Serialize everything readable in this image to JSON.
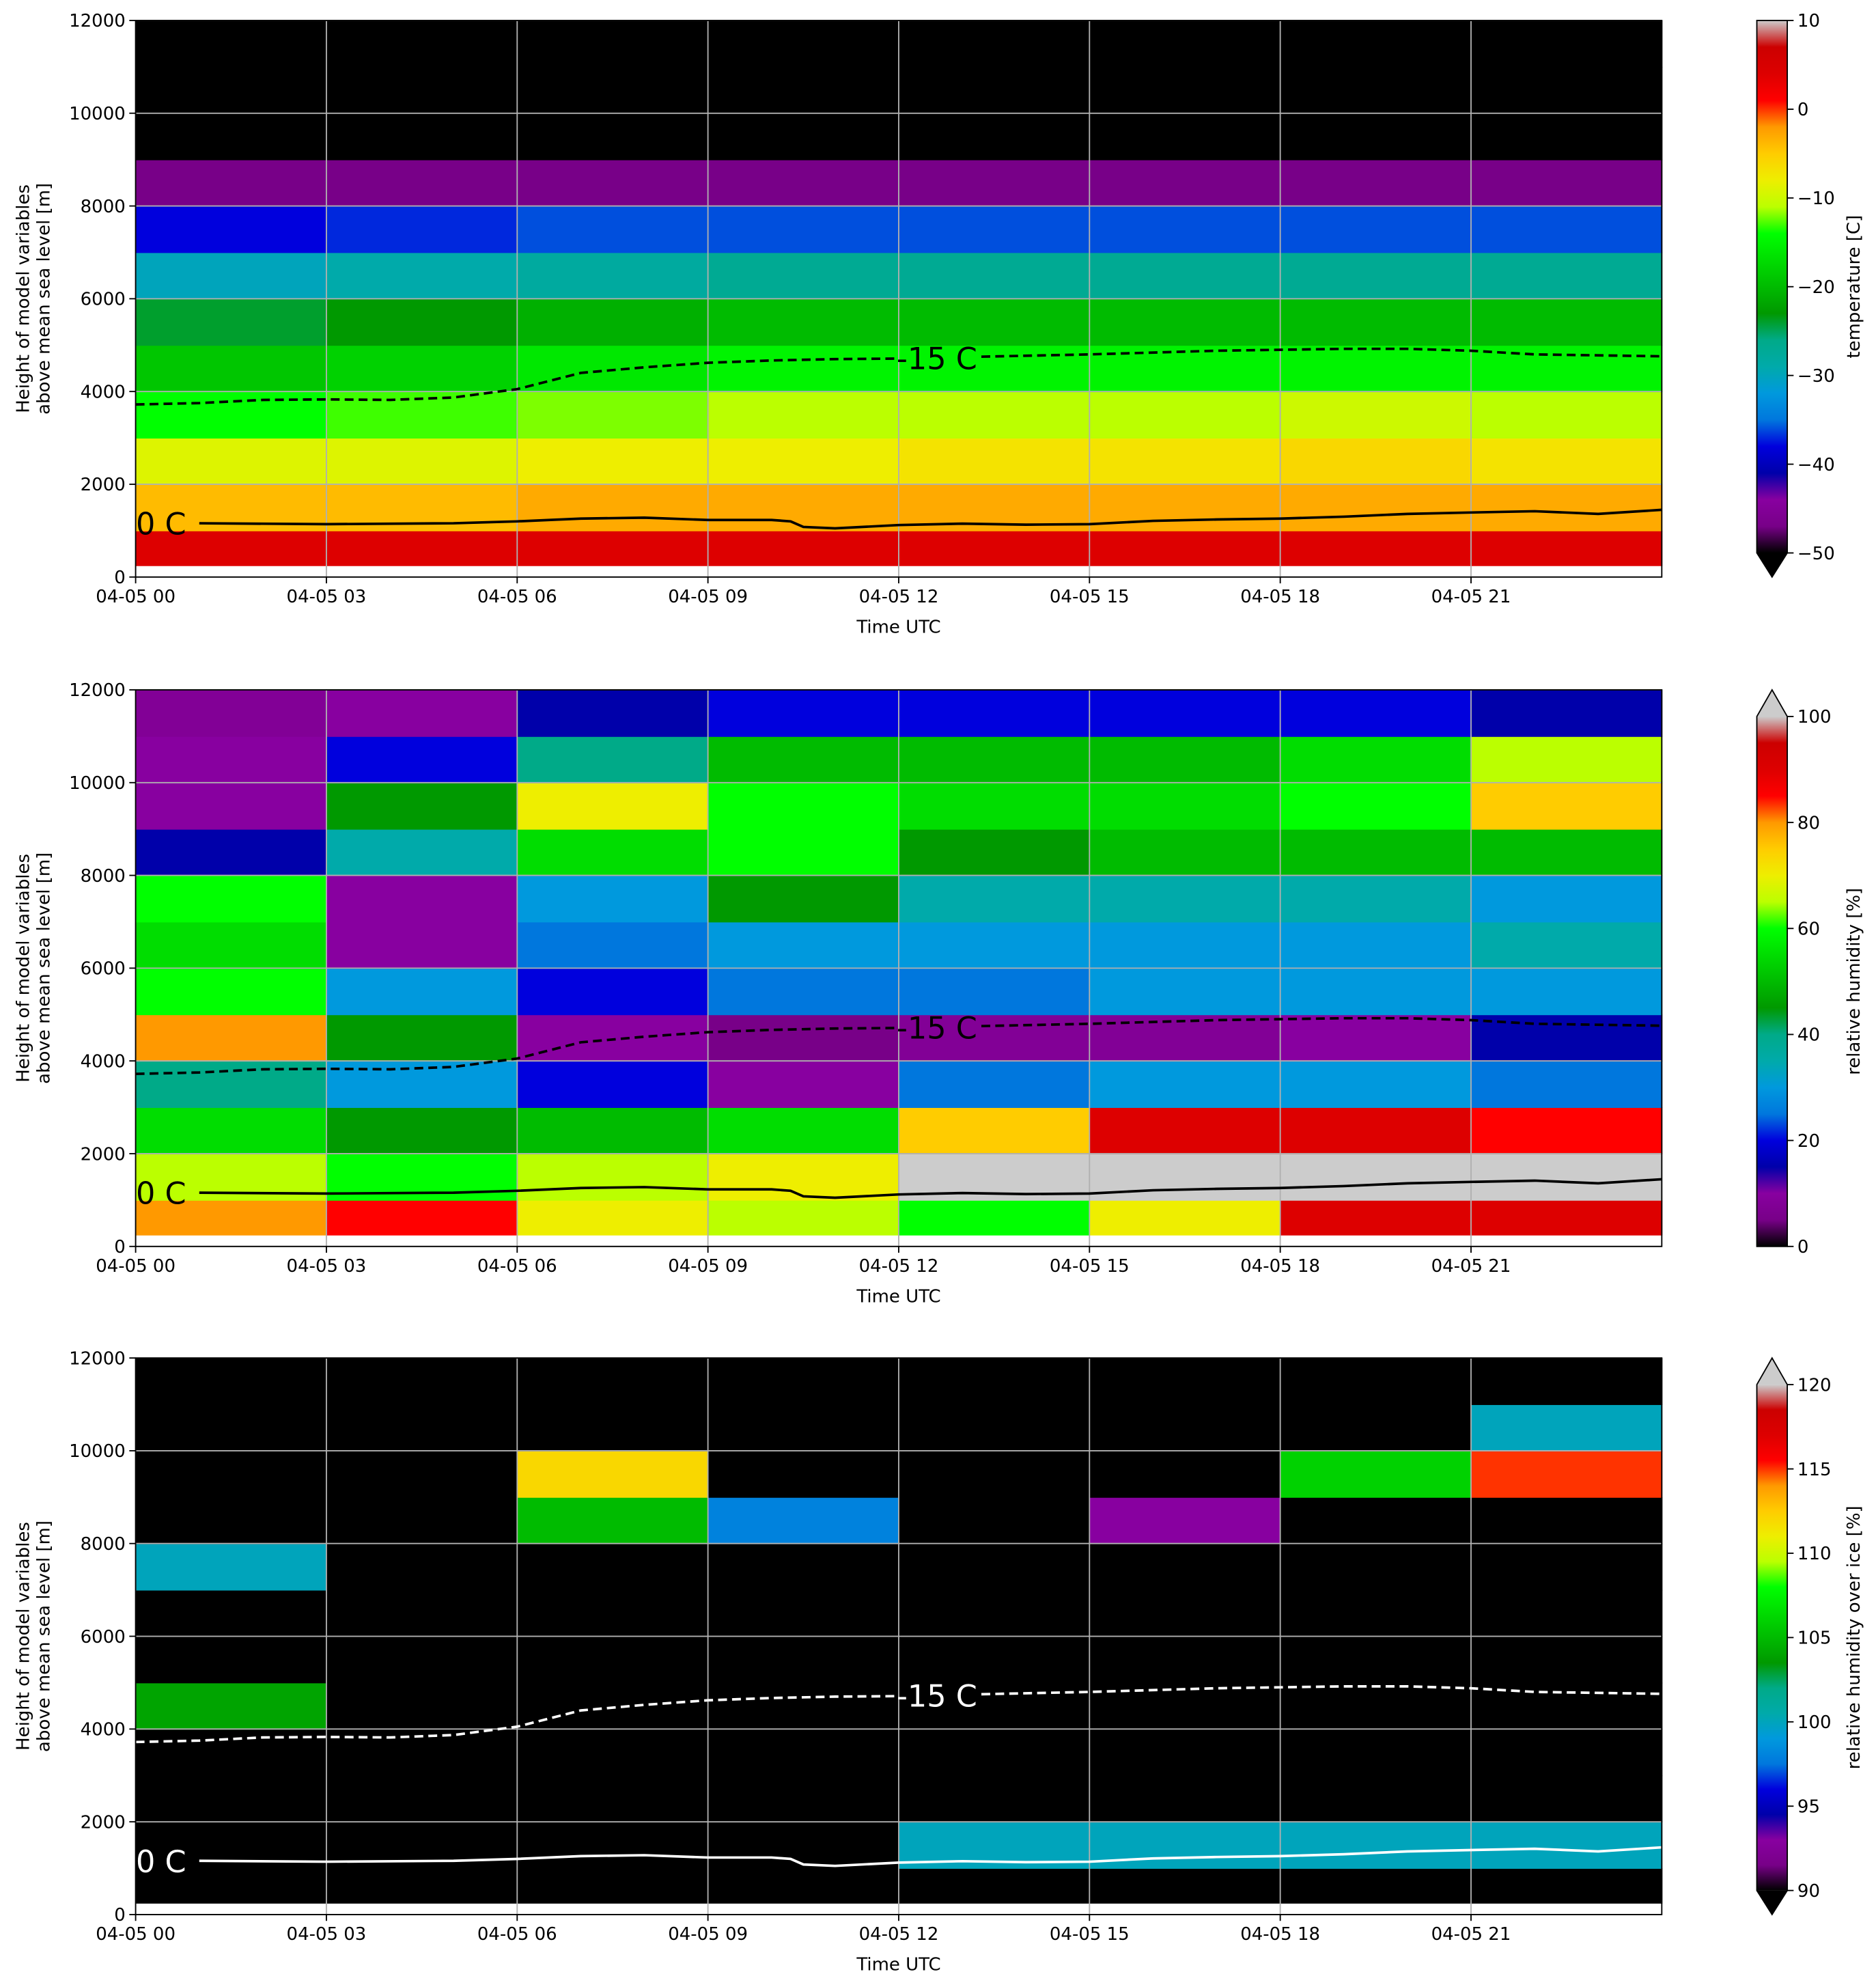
{
  "colormap": [
    "#000000",
    "#780088",
    "#8800a0",
    "#0000aa",
    "#0000dd",
    "#0077dd",
    "#0099dd",
    "#00aaaa",
    "#00aa88",
    "#009900",
    "#00bb00",
    "#00dd00",
    "#00ff00",
    "#bbff00",
    "#eeee00",
    "#ffcc00",
    "#ff9900",
    "#ff0000",
    "#dd0000",
    "#cc0000",
    "#cccccc"
  ],
  "chart_data": [
    {
      "type": "heatmap",
      "xlabel": "Time UTC",
      "ylabel": [
        "Height of model variables",
        "above mean sea level [m]"
      ],
      "colorbar_label": "temperature [C]",
      "clim": [
        -50,
        10
      ],
      "extend": "min",
      "cticks": [
        {
          "value": -50,
          "label": "−50"
        },
        {
          "value": -40,
          "label": "−40"
        },
        {
          "value": -30,
          "label": "−30"
        },
        {
          "value": -20,
          "label": "−20"
        },
        {
          "value": -10,
          "label": "−10"
        },
        0,
        10
      ],
      "xlim": [
        0,
        24
      ],
      "ylim": [
        0,
        12000
      ],
      "xticks": [
        {
          "value": 0,
          "label": "04-05 00"
        },
        {
          "value": 3,
          "label": "04-05 03"
        },
        {
          "value": 6,
          "label": "04-05 06"
        },
        {
          "value": 9,
          "label": "04-05 09"
        },
        {
          "value": 12,
          "label": "04-05 12"
        },
        {
          "value": 15,
          "label": "04-05 15"
        },
        {
          "value": 18,
          "label": "04-05 18"
        },
        {
          "value": 21,
          "label": "04-05 21"
        }
      ],
      "yticks": [
        0,
        2000,
        4000,
        6000,
        8000,
        10000,
        12000
      ],
      "grid": true,
      "xbins": [
        0,
        3,
        6,
        9,
        12,
        15,
        18,
        21,
        24
      ],
      "ybins": [
        250,
        1000,
        2000,
        3000,
        4000,
        5000,
        6000,
        7000,
        8000,
        9000,
        10000,
        11000,
        12000
      ],
      "z": [
        [
          4,
          4,
          4,
          4,
          4,
          4,
          4,
          4
        ],
        [
          -4,
          -4,
          -3,
          -3,
          -3,
          -3,
          -3,
          -3
        ],
        [
          -9,
          -9,
          -8,
          -8,
          -7,
          -7,
          -6,
          -7
        ],
        [
          -14,
          -13,
          -12,
          -11,
          -11,
          -11,
          -10,
          -11
        ],
        [
          -19,
          -18,
          -16,
          -15,
          -15,
          -15,
          -15,
          -15
        ],
        [
          -24,
          -23,
          -21,
          -20,
          -20,
          -20,
          -20,
          -20
        ],
        [
          -30,
          -29,
          -28,
          -27,
          -27,
          -27,
          -27,
          -27
        ],
        [
          -38,
          -37,
          -36,
          -36,
          -36,
          -36,
          -36,
          -36
        ],
        [
          -47,
          -47,
          -47,
          -47,
          -47,
          -47,
          -47,
          -47
        ],
        [
          -56,
          -56,
          -56,
          -56,
          -56,
          -56,
          -56,
          -56
        ],
        [
          -60,
          -60,
          -60,
          -60,
          -60,
          -60,
          -60,
          -60
        ],
        [
          -62,
          -62,
          -62,
          -62,
          -62,
          -62,
          -62,
          -62
        ]
      ],
      "contours": [
        {
          "label": "-15 C",
          "dashed": true,
          "color": "#000000",
          "x": [
            0,
            1,
            2,
            3,
            4,
            5,
            6,
            7,
            8,
            9,
            10,
            11,
            12,
            12.6,
            13.3,
            15,
            17,
            19,
            20,
            21,
            22,
            24
          ],
          "values": [
            3720,
            3750,
            3820,
            3830,
            3820,
            3870,
            4050,
            4400,
            4520,
            4620,
            4670,
            4700,
            4710,
            null,
            4750,
            4800,
            4880,
            4920,
            4920,
            4880,
            4800,
            4760
          ]
        },
        {
          "label": "0 C",
          "dashed": false,
          "color": "#000000",
          "x": [
            0.4,
            1,
            3,
            5,
            6,
            7,
            8,
            9,
            10,
            10.3,
            10.5,
            11,
            12,
            13,
            14,
            15,
            16,
            17,
            18,
            19,
            20,
            21,
            22,
            23,
            24
          ],
          "values": [
            null,
            1160,
            1140,
            1160,
            1200,
            1260,
            1280,
            1230,
            1230,
            1200,
            1080,
            1050,
            1120,
            1150,
            1130,
            1140,
            1210,
            1240,
            1260,
            1300,
            1360,
            1390,
            1420,
            1360,
            1450
          ]
        }
      ]
    },
    {
      "type": "heatmap",
      "xlabel": "Time UTC",
      "ylabel": [
        "Height of model variables",
        "above mean sea level [m]"
      ],
      "colorbar_label": "relative humidity [%]",
      "clim": [
        0,
        100
      ],
      "extend": "max",
      "cticks": [
        0,
        20,
        40,
        60,
        80,
        100
      ],
      "xlim": [
        0,
        24
      ],
      "ylim": [
        0,
        12000
      ],
      "xticks": [
        {
          "value": 0,
          "label": "04-05 00"
        },
        {
          "value": 3,
          "label": "04-05 03"
        },
        {
          "value": 6,
          "label": "04-05 06"
        },
        {
          "value": 9,
          "label": "04-05 09"
        },
        {
          "value": 12,
          "label": "04-05 12"
        },
        {
          "value": 15,
          "label": "04-05 15"
        },
        {
          "value": 18,
          "label": "04-05 18"
        },
        {
          "value": 21,
          "label": "04-05 21"
        }
      ],
      "yticks": [
        0,
        2000,
        4000,
        6000,
        8000,
        10000,
        12000
      ],
      "grid": true,
      "xbins": [
        0,
        3,
        6,
        9,
        12,
        15,
        18,
        21,
        24
      ],
      "ybins": [
        250,
        1000,
        2000,
        3000,
        4000,
        5000,
        6000,
        7000,
        8000,
        9000,
        10000,
        11000,
        12000
      ],
      "z": [
        [
          80,
          85,
          70,
          65,
          60,
          70,
          90,
          90
        ],
        [
          65,
          60,
          65,
          70,
          101,
          101,
          101,
          101
        ],
        [
          55,
          45,
          50,
          55,
          75,
          90,
          90,
          85
        ],
        [
          40,
          30,
          20,
          10,
          25,
          30,
          30,
          25
        ],
        [
          80,
          45,
          10,
          5,
          8,
          8,
          10,
          15
        ],
        [
          60,
          30,
          20,
          25,
          25,
          30,
          30,
          30
        ],
        [
          55,
          10,
          25,
          30,
          30,
          30,
          30,
          35
        ],
        [
          60,
          10,
          30,
          45,
          35,
          35,
          35,
          30
        ],
        [
          15,
          35,
          55,
          60,
          45,
          50,
          50,
          50
        ],
        [
          10,
          45,
          70,
          60,
          55,
          55,
          60,
          75
        ],
        [
          10,
          20,
          40,
          50,
          50,
          50,
          55,
          65
        ],
        [
          8,
          10,
          15,
          20,
          20,
          20,
          20,
          15
        ]
      ],
      "contours": [
        {
          "label": "-15 C",
          "dashed": true,
          "color": "#000000",
          "x": [
            0,
            1,
            2,
            3,
            4,
            5,
            6,
            7,
            8,
            9,
            10,
            11,
            12,
            12.6,
            13.3,
            15,
            17,
            19,
            20,
            21,
            22,
            24
          ],
          "values": [
            3720,
            3750,
            3820,
            3830,
            3820,
            3870,
            4050,
            4400,
            4520,
            4620,
            4670,
            4700,
            4710,
            null,
            4750,
            4800,
            4880,
            4920,
            4920,
            4880,
            4800,
            4760
          ]
        },
        {
          "label": "0 C",
          "dashed": false,
          "color": "#000000",
          "x": [
            0.4,
            1,
            3,
            5,
            6,
            7,
            8,
            9,
            10,
            10.3,
            10.5,
            11,
            12,
            13,
            14,
            15,
            16,
            17,
            18,
            19,
            20,
            21,
            22,
            23,
            24
          ],
          "values": [
            null,
            1160,
            1140,
            1160,
            1200,
            1260,
            1280,
            1230,
            1230,
            1200,
            1080,
            1050,
            1120,
            1150,
            1130,
            1140,
            1210,
            1240,
            1260,
            1300,
            1360,
            1390,
            1420,
            1360,
            1450
          ]
        }
      ]
    },
    {
      "type": "heatmap",
      "xlabel": "Time UTC",
      "ylabel": [
        "Height of model variables",
        "above mean sea level [m]"
      ],
      "colorbar_label": "relative humidity over ice [%]",
      "clim": [
        90,
        120
      ],
      "extend": "both",
      "cticks": [
        90,
        95,
        100,
        105,
        110,
        115,
        120
      ],
      "xlim": [
        0,
        24
      ],
      "ylim": [
        0,
        12000
      ],
      "xticks": [
        {
          "value": 0,
          "label": "04-05 00"
        },
        {
          "value": 3,
          "label": "04-05 03"
        },
        {
          "value": 6,
          "label": "04-05 06"
        },
        {
          "value": 9,
          "label": "04-05 09"
        },
        {
          "value": 12,
          "label": "04-05 12"
        },
        {
          "value": 15,
          "label": "04-05 15"
        },
        {
          "value": 18,
          "label": "04-05 18"
        },
        {
          "value": 21,
          "label": "04-05 21"
        }
      ],
      "yticks": [
        0,
        2000,
        4000,
        6000,
        8000,
        10000,
        12000
      ],
      "grid": true,
      "xbins": [
        0,
        3,
        6,
        9,
        12,
        15,
        18,
        21,
        24
      ],
      "ybins": [
        250,
        1000,
        2000,
        3000,
        4000,
        5000,
        6000,
        7000,
        8000,
        9000,
        10000,
        11000,
        12000
      ],
      "z": [
        [
          80,
          80,
          80,
          80,
          80,
          80,
          80,
          80
        ],
        [
          80,
          80,
          80,
          80,
          100,
          100,
          100,
          100
        ],
        [
          80,
          80,
          80,
          80,
          80,
          80,
          80,
          80
        ],
        [
          80,
          80,
          80,
          80,
          80,
          80,
          80,
          80
        ],
        [
          104,
          80,
          80,
          80,
          80,
          80,
          80,
          80
        ],
        [
          80,
          80,
          80,
          80,
          80,
          80,
          80,
          80
        ],
        [
          80,
          80,
          80,
          80,
          80,
          80,
          80,
          80
        ],
        [
          100,
          80,
          80,
          80,
          80,
          80,
          80,
          80
        ],
        [
          80,
          80,
          105,
          98,
          80,
          93,
          80,
          80
        ],
        [
          80,
          80,
          112,
          80,
          80,
          80,
          106,
          115
        ],
        [
          80,
          80,
          80,
          80,
          80,
          80,
          80,
          100
        ],
        [
          80,
          80,
          80,
          80,
          80,
          80,
          80,
          80
        ]
      ],
      "contours": [
        {
          "label": "-15 C",
          "dashed": true,
          "color": "#ffffff",
          "x": [
            0,
            1,
            2,
            3,
            4,
            5,
            6,
            7,
            8,
            9,
            10,
            11,
            12,
            12.6,
            13.3,
            15,
            17,
            19,
            20,
            21,
            22,
            24
          ],
          "values": [
            3720,
            3750,
            3820,
            3830,
            3820,
            3870,
            4050,
            4400,
            4520,
            4620,
            4670,
            4700,
            4710,
            null,
            4750,
            4800,
            4880,
            4920,
            4920,
            4880,
            4800,
            4760
          ]
        },
        {
          "label": "0 C",
          "dashed": false,
          "color": "#ffffff",
          "x": [
            0.4,
            1,
            3,
            5,
            6,
            7,
            8,
            9,
            10,
            10.3,
            10.5,
            11,
            12,
            13,
            14,
            15,
            16,
            17,
            18,
            19,
            20,
            21,
            22,
            23,
            24
          ],
          "values": [
            null,
            1160,
            1140,
            1160,
            1200,
            1260,
            1280,
            1230,
            1230,
            1200,
            1080,
            1050,
            1120,
            1150,
            1130,
            1140,
            1210,
            1240,
            1260,
            1300,
            1360,
            1390,
            1420,
            1360,
            1450
          ]
        }
      ]
    }
  ]
}
